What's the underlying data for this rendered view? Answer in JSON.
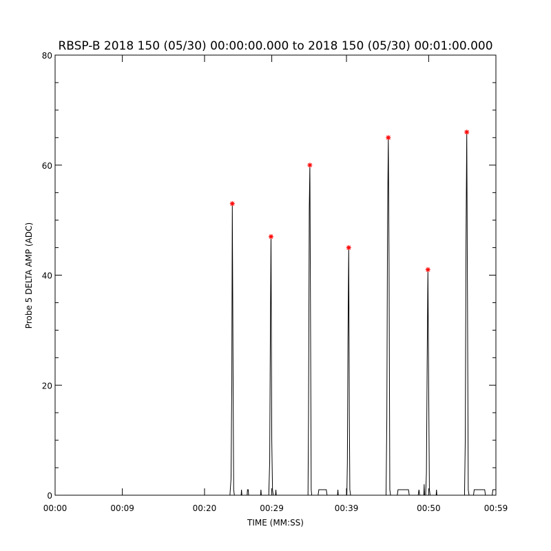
{
  "chart_data": {
    "type": "line",
    "title": "RBSP-B 2018 150 (05/30) 00:00:00.000 to 2018 150 (05/30) 00:01:00.000",
    "xlabel": "TIME (MM:SS)",
    "ylabel": "Probe 5 DELTA AMP (ADC)",
    "xlim": [
      0,
      59
    ],
    "ylim": [
      0,
      80
    ],
    "x_ticks": [
      0,
      9,
      20,
      29,
      39,
      50,
      59
    ],
    "x_tick_labels": [
      "00:00",
      "00:09",
      "00:20",
      "00:29",
      "00:39",
      "00:50",
      "00:59"
    ],
    "y_ticks": [
      0,
      20,
      40,
      60,
      80
    ],
    "y_tick_labels": [
      "0",
      "20",
      "40",
      "60",
      "80"
    ],
    "grid": false,
    "series": [
      {
        "color": "#000000",
        "points": [
          [
            0,
            0
          ],
          [
            23.4,
            0
          ],
          [
            23.55,
            3
          ],
          [
            23.65,
            20
          ],
          [
            23.72,
            53
          ],
          [
            23.8,
            29
          ],
          [
            23.9,
            1
          ],
          [
            24.0,
            0
          ],
          [
            24.9,
            0
          ],
          [
            24.95,
            1
          ],
          [
            25.0,
            0
          ],
          [
            25.7,
            0
          ],
          [
            25.75,
            1
          ],
          [
            25.85,
            1
          ],
          [
            25.9,
            0
          ],
          [
            27.5,
            0
          ],
          [
            27.55,
            1
          ],
          [
            27.6,
            0
          ],
          [
            28.6,
            0
          ],
          [
            28.72,
            6
          ],
          [
            28.82,
            31
          ],
          [
            28.9,
            47
          ],
          [
            29.0,
            10
          ],
          [
            29.1,
            1
          ],
          [
            29.2,
            0
          ],
          [
            29.5,
            0
          ],
          [
            29.55,
            1
          ],
          [
            29.6,
            0
          ],
          [
            33.85,
            0
          ],
          [
            33.92,
            14
          ],
          [
            34.02,
            52
          ],
          [
            34.1,
            60
          ],
          [
            34.18,
            35
          ],
          [
            34.28,
            1
          ],
          [
            34.35,
            0
          ],
          [
            35.2,
            0
          ],
          [
            35.3,
            1
          ],
          [
            36.3,
            1
          ],
          [
            36.4,
            0
          ],
          [
            37.8,
            0
          ],
          [
            37.85,
            1
          ],
          [
            37.9,
            0
          ],
          [
            39.05,
            0
          ],
          [
            39.12,
            6
          ],
          [
            39.2,
            28
          ],
          [
            39.3,
            45
          ],
          [
            39.38,
            15
          ],
          [
            39.45,
            1
          ],
          [
            39.55,
            0
          ],
          [
            44.3,
            0
          ],
          [
            44.4,
            14
          ],
          [
            44.5,
            50
          ],
          [
            44.6,
            65
          ],
          [
            44.7,
            42
          ],
          [
            44.8,
            1
          ],
          [
            44.9,
            0
          ],
          [
            45.8,
            0
          ],
          [
            45.9,
            1
          ],
          [
            47.3,
            1
          ],
          [
            47.4,
            0
          ],
          [
            48.6,
            0
          ],
          [
            48.7,
            1
          ],
          [
            48.8,
            0
          ],
          [
            49.35,
            0
          ],
          [
            49.4,
            2
          ],
          [
            49.45,
            0
          ],
          [
            49.6,
            0
          ],
          [
            49.7,
            4
          ],
          [
            49.8,
            24
          ],
          [
            49.9,
            41
          ],
          [
            50.0,
            20
          ],
          [
            50.1,
            1
          ],
          [
            50.2,
            0
          ],
          [
            51.0,
            0
          ],
          [
            51.05,
            1
          ],
          [
            51.1,
            0
          ],
          [
            54.8,
            0
          ],
          [
            54.9,
            10
          ],
          [
            55.0,
            46
          ],
          [
            55.1,
            66
          ],
          [
            55.2,
            35
          ],
          [
            55.3,
            1
          ],
          [
            55.4,
            0
          ],
          [
            56.0,
            0
          ],
          [
            56.1,
            1
          ],
          [
            57.5,
            1
          ],
          [
            57.6,
            0
          ],
          [
            58.5,
            0
          ],
          [
            58.6,
            1
          ],
          [
            59,
            1
          ]
        ]
      }
    ],
    "peaks": {
      "color": "#ff0000",
      "marker": "asterisk",
      "points": [
        [
          23.72,
          53
        ],
        [
          28.9,
          47
        ],
        [
          34.1,
          60
        ],
        [
          39.3,
          45
        ],
        [
          44.6,
          65
        ],
        [
          49.9,
          41
        ],
        [
          55.1,
          66
        ]
      ]
    }
  }
}
